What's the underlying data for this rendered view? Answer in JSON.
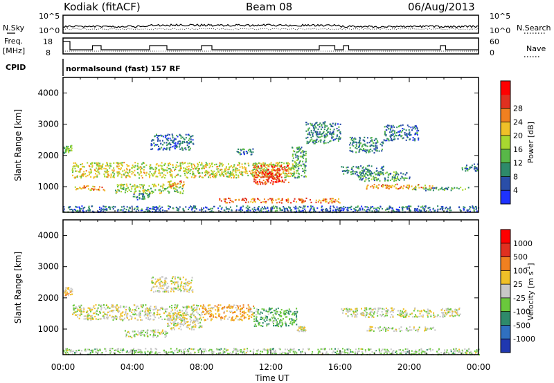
{
  "header": {
    "station": "Kodiak (fitACF)",
    "beam": "Beam 08",
    "date": "06/Aug/2013",
    "cpid_label": "CPID",
    "cpid_text": "normalsound (fast) 157 RF"
  },
  "status_panels": {
    "noise": {
      "left_label": "N.Sky",
      "right_label": "N.Search",
      "left_ticks": [
        "10^5",
        "10^0"
      ],
      "right_ticks": [
        "10^5",
        "10^0"
      ]
    },
    "freq": {
      "left_label_line1": "Freq.",
      "left_label_line2": "[MHz]",
      "right_label": "Nave",
      "left_ticks": [
        "18",
        "8"
      ],
      "right_ticks": [
        "60",
        "0"
      ]
    }
  },
  "time_axis": {
    "label": "Time UT",
    "ticks": [
      "00:00",
      "04:00",
      "08:00",
      "12:00",
      "16:00",
      "20:00",
      "00:00"
    ]
  },
  "chart_data": [
    {
      "type": "heatmap",
      "name": "power",
      "ylabel": "Slant Range [km]",
      "y_ticks": [
        "1000",
        "2000",
        "3000",
        "4000"
      ],
      "ylim": [
        180,
        4500
      ],
      "xlim_hours": [
        0,
        24
      ],
      "colorbar": {
        "label": "Power [dB]",
        "ticks": [
          "4",
          "8",
          "12",
          "16",
          "20",
          "24",
          "28"
        ],
        "colors": [
          "#1e32ff",
          "#2a4ea8",
          "#2e8a6a",
          "#58b848",
          "#a8d830",
          "#f0c028",
          "#f08020",
          "#e03020",
          "#ff0000"
        ],
        "range": [
          0,
          30
        ]
      },
      "bands": [
        {
          "t": [
            0.0,
            0.5
          ],
          "r": [
            2100,
            2350
          ],
          "v": 12
        },
        {
          "t": [
            0.5,
            13.5
          ],
          "r": [
            1300,
            1800
          ],
          "v": 16
        },
        {
          "t": [
            0.6,
            2.5
          ],
          "r": [
            900,
            1050
          ],
          "v": 20
        },
        {
          "t": [
            3.0,
            7.0
          ],
          "r": [
            800,
            1100
          ],
          "v": 14
        },
        {
          "t": [
            4.0,
            5.0
          ],
          "r": [
            600,
            800
          ],
          "v": 8
        },
        {
          "t": [
            6.0,
            7.0
          ],
          "r": [
            1000,
            1200
          ],
          "v": 20
        },
        {
          "t": [
            5.0,
            7.5
          ],
          "r": [
            2200,
            2700
          ],
          "v": 6
        },
        {
          "t": [
            10.0,
            11.0
          ],
          "r": [
            2050,
            2250
          ],
          "v": 8
        },
        {
          "t": [
            11.0,
            13.0
          ],
          "r": [
            1100,
            1700
          ],
          "v": 24
        },
        {
          "t": [
            11.5,
            12.5
          ],
          "r": [
            1200,
            1450
          ],
          "v": 26
        },
        {
          "t": [
            13.2,
            14.0
          ],
          "r": [
            1300,
            2300
          ],
          "v": 10
        },
        {
          "t": [
            14.0,
            16.0
          ],
          "r": [
            2400,
            3100
          ],
          "v": 8
        },
        {
          "t": [
            16.0,
            18.5
          ],
          "r": [
            1400,
            1700
          ],
          "v": 8
        },
        {
          "t": [
            17.0,
            20.0
          ],
          "r": [
            1200,
            1500
          ],
          "v": 10
        },
        {
          "t": [
            17.5,
            21.5
          ],
          "r": [
            950,
            1100
          ],
          "v": 20
        },
        {
          "t": [
            20.0,
            23.5
          ],
          "r": [
            900,
            1000
          ],
          "v": 10
        },
        {
          "t": [
            16.5,
            18.5
          ],
          "r": [
            2100,
            2600
          ],
          "v": 8
        },
        {
          "t": [
            18.5,
            20.5
          ],
          "r": [
            2500,
            3000
          ],
          "v": 7
        },
        {
          "t": [
            23.0,
            24.0
          ],
          "r": [
            1500,
            1750
          ],
          "v": 8
        },
        {
          "t": [
            0.0,
            24.0
          ],
          "r": [
            200,
            400
          ],
          "v": 6
        },
        {
          "t": [
            9.0,
            16.0
          ],
          "r": [
            500,
            650
          ],
          "v": 22
        }
      ]
    },
    {
      "type": "heatmap",
      "name": "velocity",
      "ylabel": "Slant Range [km]",
      "y_ticks": [
        "1000",
        "2000",
        "3000",
        "4000"
      ],
      "ylim": [
        180,
        4500
      ],
      "xlim_hours": [
        0,
        24
      ],
      "colorbar": {
        "label": "Velocity [m s^-1]",
        "ticks": [
          "1000",
          "500",
          "100",
          "25",
          "-25",
          "-100",
          "-500",
          "-1000"
        ],
        "colors": [
          "#2038b0",
          "#3070c0",
          "#2e8a6a",
          "#6ac83c",
          "#c8c8c8",
          "#f0c028",
          "#f08020",
          "#e03020",
          "#ff0000"
        ],
        "range": [
          -1000,
          1000
        ]
      },
      "bands": [
        {
          "t": [
            0.0,
            0.5
          ],
          "r": [
            2100,
            2350
          ],
          "v": 200
        },
        {
          "t": [
            0.5,
            8.0
          ],
          "r": [
            1300,
            1800
          ],
          "v": 0
        },
        {
          "t": [
            6.0,
            8.0
          ],
          "r": [
            1000,
            1500
          ],
          "v": 80
        },
        {
          "t": [
            8.0,
            11.0
          ],
          "r": [
            1300,
            1800
          ],
          "v": 300
        },
        {
          "t": [
            11.0,
            13.5
          ],
          "r": [
            1100,
            1700
          ],
          "v": -300
        },
        {
          "t": [
            13.5,
            14.0
          ],
          "r": [
            900,
            1100
          ],
          "v": 80
        },
        {
          "t": [
            3.5,
            6.0
          ],
          "r": [
            750,
            1000
          ],
          "v": 0
        },
        {
          "t": [
            5.0,
            7.5
          ],
          "r": [
            2200,
            2700
          ],
          "v": 60
        },
        {
          "t": [
            16.0,
            23.0
          ],
          "r": [
            1400,
            1700
          ],
          "v": 0
        },
        {
          "t": [
            17.5,
            21.5
          ],
          "r": [
            950,
            1100
          ],
          "v": -30
        },
        {
          "t": [
            0.0,
            24.0
          ],
          "r": [
            200,
            400
          ],
          "v": -120
        }
      ]
    }
  ]
}
